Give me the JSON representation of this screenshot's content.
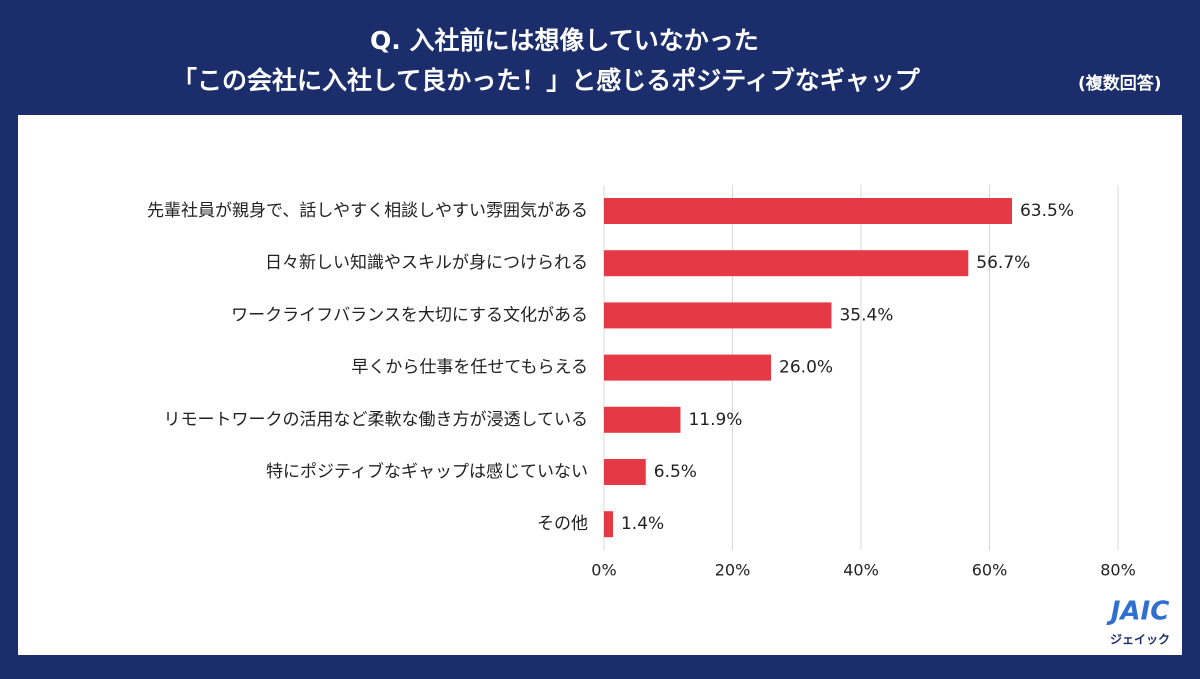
{
  "chart_data": {
    "type": "barh",
    "title": [
      "Q. 入社前には想像していなかった",
      "「この会社に入社して良かった！」と感じるポジティブなギャップ"
    ],
    "subtitle": "(複数回答)",
    "categories": [
      "先輩社員が親身で、話しやすく相談しやすい雰囲気がある",
      "日々新しい知識やスキルが身につけられる",
      "ワークライフバランスを大切にする文化がある",
      "早くから仕事を任せてもらえる",
      "リモートワークの活用など柔軟な働き方が浸透している",
      "特にポジティブなギャップは感じていない",
      "その他"
    ],
    "values": [
      63.5,
      56.7,
      35.4,
      26.0,
      11.9,
      6.5,
      1.4
    ],
    "value_labels": [
      "63.5%",
      "56.7%",
      "35.4%",
      "26.0%",
      "11.9%",
      "6.5%",
      "1.4%"
    ],
    "color": "#e63946",
    "xlim": [
      0,
      80
    ],
    "xticks": [
      {
        "value": 0,
        "label": "0%"
      },
      {
        "value": 20,
        "label": "20%"
      },
      {
        "value": 40,
        "label": "40%"
      },
      {
        "value": 60,
        "label": "60%"
      },
      {
        "value": 80,
        "label": "80%"
      }
    ],
    "grid": true
  },
  "logo": {
    "name": "JAIC",
    "sub": "ジェイック"
  }
}
